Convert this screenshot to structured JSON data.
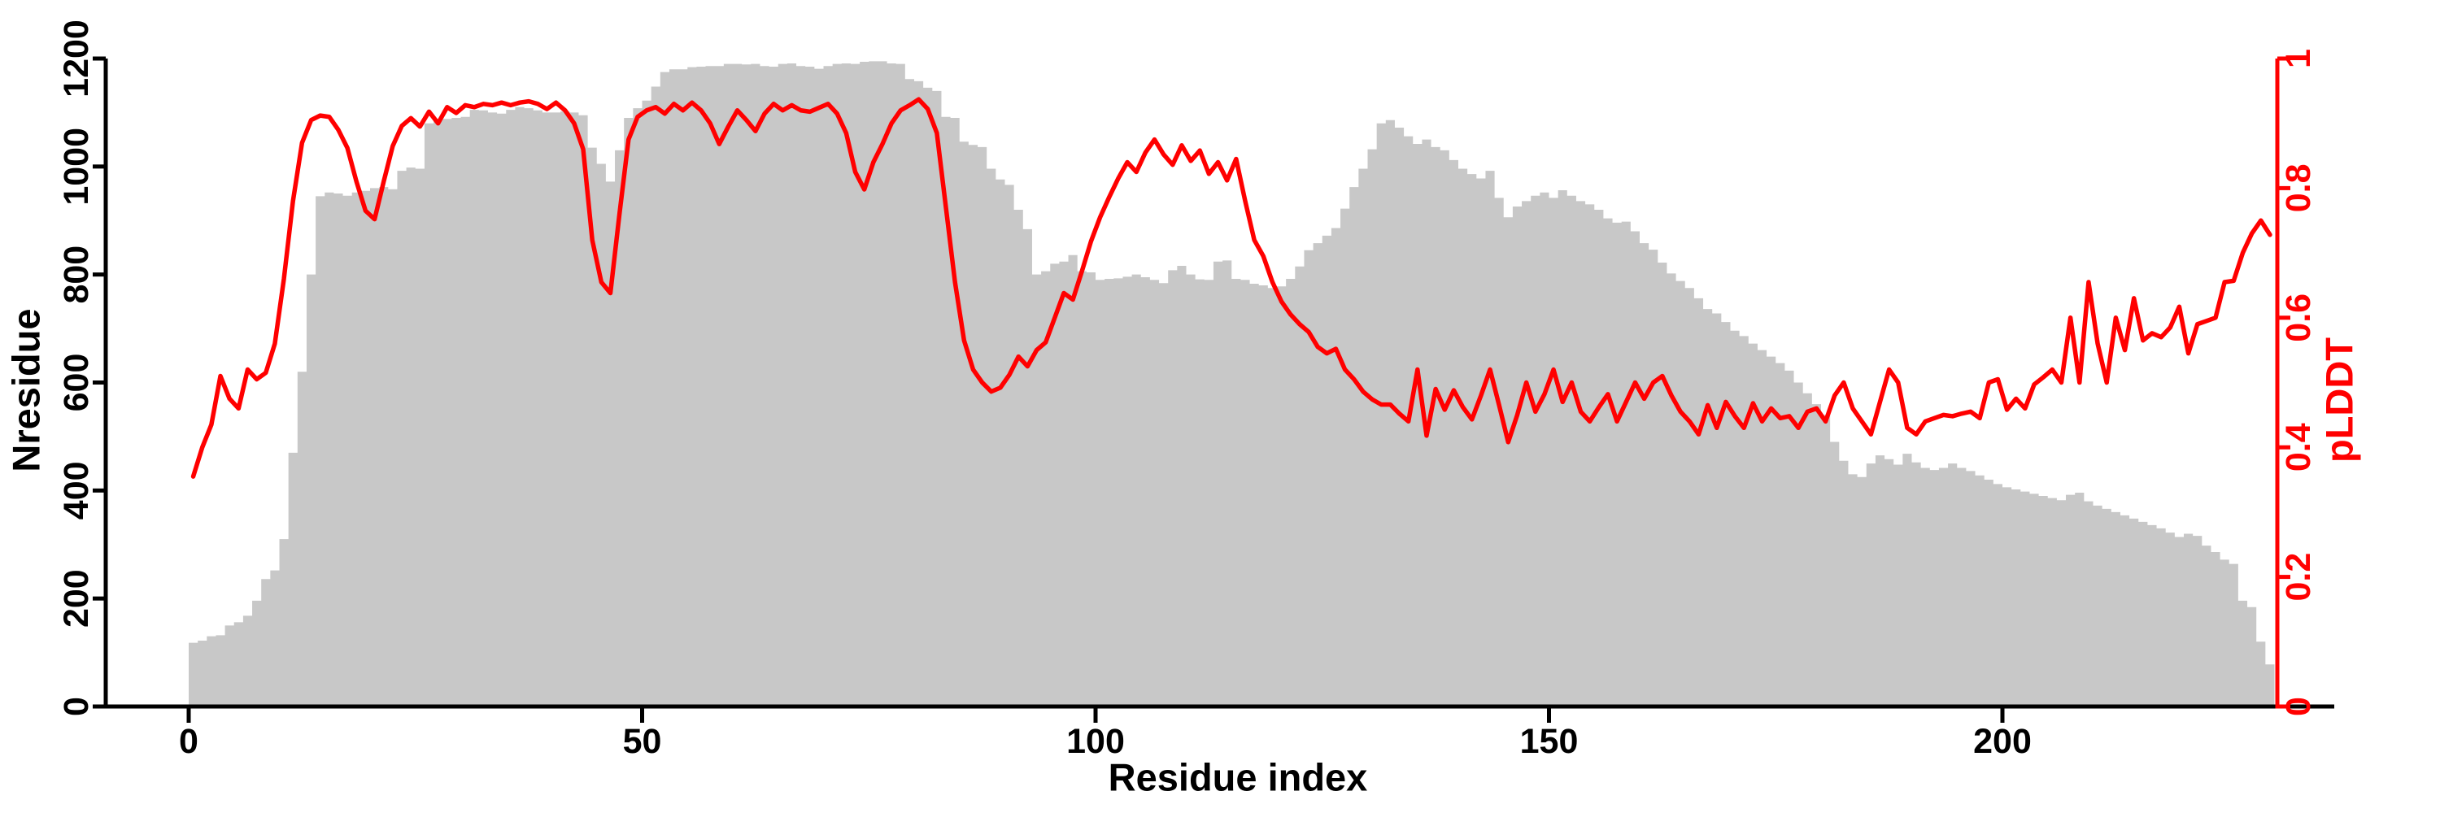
{
  "figure": {
    "background": "#ffffff",
    "bar_color": "#c8c8c8",
    "line_color": "#ff0000",
    "axis_color": "#000000"
  },
  "chart_data": {
    "type": "bar+line combo",
    "title": "",
    "xlabel": "Residue index",
    "ylabel_left": "Nresidue",
    "ylabel_right": "pLDDT",
    "x": {
      "start": 0,
      "step": 1,
      "count": 230
    },
    "x_ticks": [
      0,
      50,
      100,
      150,
      200
    ],
    "left_ticks": [
      0,
      200,
      400,
      600,
      800,
      1000,
      1200
    ],
    "right_ticks": [
      0,
      0.2,
      0.4,
      0.6,
      0.8,
      1
    ],
    "ylim_left": [
      0,
      1200
    ],
    "ylim_right": [
      0,
      1
    ],
    "grid": false,
    "legend": "none",
    "series": [
      {
        "name": "Nresidue",
        "type": "bar",
        "axis": "left",
        "color": "#c8c8c8",
        "values": [
          118,
          122,
          130,
          132,
          150,
          156,
          168,
          196,
          236,
          252,
          310,
          470,
          620,
          800,
          945,
          952,
          950,
          946,
          952,
          955,
          960,
          962,
          958,
          992,
          998,
          996,
          1080,
          1085,
          1088,
          1090,
          1092,
          1105,
          1104,
          1100,
          1098,
          1105,
          1110,
          1108,
          1104,
          1100,
          1100,
          1102,
          1100,
          1095,
          1035,
          1005,
          972,
          1030,
          1090,
          1108,
          1122,
          1148,
          1175,
          1180,
          1180,
          1184,
          1185,
          1186,
          1186,
          1190,
          1190,
          1189,
          1190,
          1186,
          1185,
          1190,
          1191,
          1186,
          1185,
          1181,
          1186,
          1190,
          1191,
          1190,
          1194,
          1195,
          1195,
          1191,
          1190,
          1162,
          1158,
          1146,
          1140,
          1092,
          1090,
          1046,
          1040,
          1036,
          996,
          976,
          966,
          920,
          884,
          800,
          806,
          820,
          824,
          836,
          806,
          804,
          790,
          792,
          793,
          796,
          800,
          795,
          790,
          784,
          808,
          816,
          800,
          791,
          790,
          824,
          826,
          792,
          790,
          783,
          780,
          775,
          778,
          792,
          815,
          845,
          858,
          872,
          886,
          922,
          962,
          996,
          1032,
          1080,
          1086,
          1072,
          1056,
          1042,
          1050,
          1036,
          1030,
          1012,
          996,
          986,
          978,
          992,
          942,
          906,
          926,
          936,
          946,
          952,
          942,
          956,
          946,
          936,
          930,
          920,
          904,
          896,
          898,
          880,
          858,
          846,
          822,
          802,
          788,
          775,
          756,
          736,
          728,
          712,
          696,
          686,
          672,
          660,
          648,
          636,
          622,
          600,
          580,
          560,
          540,
          490,
          455,
          430,
          425,
          450,
          465,
          458,
          448,
          468,
          452,
          442,
          438,
          442,
          450,
          442,
          436,
          428,
          420,
          412,
          406,
          402,
          398,
          394,
          390,
          386,
          382,
          392,
          396,
          380,
          372,
          366,
          360,
          354,
          348,
          342,
          336,
          330,
          322,
          314,
          320,
          316,
          298,
          286,
          272,
          264,
          196,
          184,
          120,
          78
        ]
      },
      {
        "name": "pLDDT",
        "type": "line",
        "axis": "right",
        "color": "#ff0000",
        "values": [
          0.355,
          0.4,
          0.435,
          0.51,
          0.475,
          0.46,
          0.52,
          0.505,
          0.515,
          0.56,
          0.66,
          0.78,
          0.87,
          0.905,
          0.912,
          0.91,
          0.89,
          0.862,
          0.81,
          0.765,
          0.752,
          0.81,
          0.865,
          0.896,
          0.908,
          0.895,
          0.918,
          0.9,
          0.925,
          0.916,
          0.928,
          0.925,
          0.93,
          0.928,
          0.932,
          0.928,
          0.932,
          0.934,
          0.93,
          0.922,
          0.932,
          0.92,
          0.9,
          0.86,
          0.72,
          0.655,
          0.638,
          0.76,
          0.875,
          0.91,
          0.92,
          0.925,
          0.915,
          0.93,
          0.92,
          0.932,
          0.92,
          0.9,
          0.868,
          0.895,
          0.92,
          0.905,
          0.888,
          0.915,
          0.93,
          0.92,
          0.928,
          0.92,
          0.918,
          0.924,
          0.93,
          0.915,
          0.885,
          0.825,
          0.798,
          0.84,
          0.868,
          0.9,
          0.92,
          0.928,
          0.937,
          0.922,
          0.885,
          0.77,
          0.655,
          0.565,
          0.52,
          0.5,
          0.486,
          0.492,
          0.512,
          0.54,
          0.525,
          0.55,
          0.562,
          0.6,
          0.638,
          0.628,
          0.672,
          0.718,
          0.755,
          0.786,
          0.815,
          0.84,
          0.825,
          0.855,
          0.875,
          0.852,
          0.836,
          0.866,
          0.842,
          0.858,
          0.822,
          0.84,
          0.812,
          0.845,
          0.78,
          0.72,
          0.695,
          0.655,
          0.625,
          0.605,
          0.59,
          0.578,
          0.555,
          0.545,
          0.552,
          0.52,
          0.505,
          0.486,
          0.474,
          0.466,
          0.466,
          0.452,
          0.44,
          0.52,
          0.418,
          0.49,
          0.458,
          0.488,
          0.462,
          0.443,
          0.48,
          0.52,
          0.465,
          0.408,
          0.45,
          0.5,
          0.455,
          0.482,
          0.52,
          0.47,
          0.5,
          0.455,
          0.44,
          0.462,
          0.482,
          0.44,
          0.47,
          0.5,
          0.475,
          0.5,
          0.51,
          0.48,
          0.455,
          0.44,
          0.42,
          0.465,
          0.43,
          0.47,
          0.448,
          0.43,
          0.468,
          0.44,
          0.46,
          0.445,
          0.448,
          0.43,
          0.455,
          0.46,
          0.44,
          0.48,
          0.5,
          0.46,
          0.44,
          0.42,
          0.47,
          0.52,
          0.5,
          0.43,
          0.42,
          0.44,
          0.445,
          0.45,
          0.448,
          0.452,
          0.455,
          0.445,
          0.5,
          0.505,
          0.458,
          0.475,
          0.46,
          0.497,
          0.508,
          0.52,
          0.5,
          0.6,
          0.5,
          0.655,
          0.56,
          0.5,
          0.6,
          0.55,
          0.63,
          0.565,
          0.576,
          0.57,
          0.585,
          0.617,
          0.545,
          0.59,
          0.595,
          0.6,
          0.655,
          0.657,
          0.7,
          0.73,
          0.75,
          0.728
        ]
      }
    ]
  }
}
